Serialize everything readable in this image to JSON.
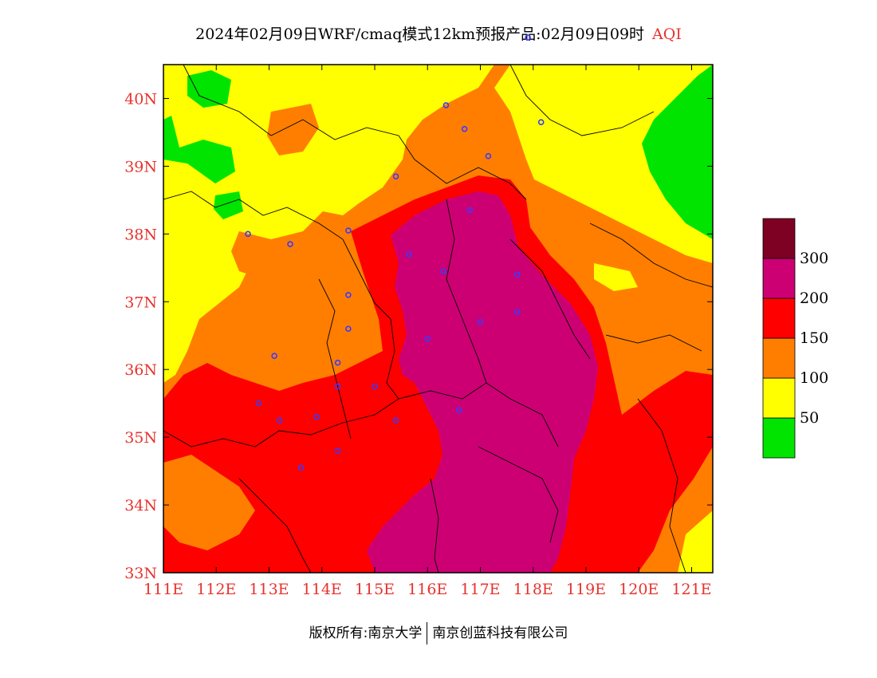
{
  "title": "2024年02月09日WRF/cmaq模式12km预报产品:02月09日09时",
  "title_variable": "AQI",
  "footer": {
    "copyright": "版权所有:南京大学",
    "company": "南京创蓝科技有限公司"
  },
  "map": {
    "longitude_ticks": [
      "111E",
      "112E",
      "113E",
      "114E",
      "115E",
      "116E",
      "117E",
      "118E",
      "119E",
      "120E",
      "121E"
    ],
    "latitude_ticks": [
      "33N",
      "34N",
      "35N",
      "36N",
      "37N",
      "38N",
      "39N",
      "40N"
    ],
    "lon_range": [
      111,
      121.4
    ],
    "lat_range": [
      33,
      40.5
    ],
    "tick_color": "#e8322d"
  },
  "legend": {
    "labels": [
      "50",
      "100",
      "150",
      "200",
      "300"
    ],
    "colors": [
      "#00e400",
      "#ffff00",
      "#ff7e00",
      "#ff0000",
      "#cc0073",
      "#7e0023"
    ]
  },
  "stations": [
    [
      112.6,
      38.0
    ],
    [
      113.4,
      37.85
    ],
    [
      114.5,
      38.05
    ],
    [
      115.4,
      38.85
    ],
    [
      116.35,
      39.9
    ],
    [
      116.7,
      39.55
    ],
    [
      117.15,
      39.15
    ],
    [
      118.15,
      39.65
    ],
    [
      117.9,
      40.9
    ],
    [
      116.8,
      38.35
    ],
    [
      115.65,
      37.7
    ],
    [
      116.3,
      37.45
    ],
    [
      117.7,
      37.4
    ],
    [
      114.5,
      37.1
    ],
    [
      114.5,
      36.6
    ],
    [
      117.7,
      36.85
    ],
    [
      117.0,
      36.7
    ],
    [
      116.0,
      36.45
    ],
    [
      113.1,
      36.2
    ],
    [
      114.3,
      36.1
    ],
    [
      114.3,
      35.75
    ],
    [
      115.0,
      35.75
    ],
    [
      112.8,
      35.5
    ],
    [
      113.2,
      35.25
    ],
    [
      113.9,
      35.3
    ],
    [
      115.4,
      35.25
    ],
    [
      116.6,
      35.4
    ],
    [
      114.3,
      34.8
    ],
    [
      113.6,
      34.55
    ]
  ]
}
